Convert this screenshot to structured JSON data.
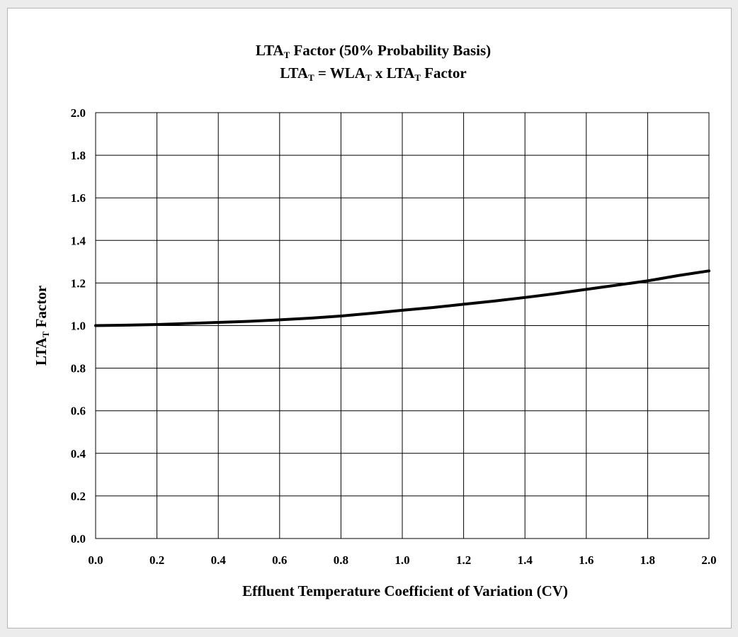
{
  "chart_data": {
    "type": "line",
    "title_line1": {
      "prefix": "LTA",
      "sub": "T",
      "suffix": " Factor (50% Probability Basis)"
    },
    "title_line2": {
      "p1": "LTA",
      "s1": "T",
      "p2": " = WLA",
      "s2": "T",
      "p3": " x LTA",
      "s3": "T",
      "p4": " Factor"
    },
    "xlabel": "Effluent Temperature Coefficient of Variation (CV)",
    "ylabel": {
      "prefix": "LTA",
      "sub": "T",
      "suffix": " Factor"
    },
    "xlim": [
      0.0,
      2.0
    ],
    "ylim": [
      0.0,
      2.0
    ],
    "x_ticks": [
      "0.0",
      "0.2",
      "0.4",
      "0.6",
      "0.8",
      "1.0",
      "1.2",
      "1.4",
      "1.6",
      "1.8",
      "2.0"
    ],
    "y_ticks": [
      "0.0",
      "0.2",
      "0.4",
      "0.6",
      "0.8",
      "1.0",
      "1.2",
      "1.4",
      "1.6",
      "1.8",
      "2.0"
    ],
    "grid": true,
    "legend": "none",
    "series": [
      {
        "color": "#000000",
        "x": [
          0.0,
          0.1,
          0.2,
          0.3,
          0.4,
          0.5,
          0.6,
          0.7,
          0.8,
          0.9,
          1.0,
          1.1,
          1.2,
          1.3,
          1.4,
          1.5,
          1.6,
          1.7,
          1.8,
          1.9,
          2.0
        ],
        "y": [
          1.0,
          1.002,
          1.005,
          1.01,
          1.015,
          1.02,
          1.027,
          1.035,
          1.045,
          1.058,
          1.072,
          1.085,
          1.1,
          1.115,
          1.132,
          1.15,
          1.17,
          1.19,
          1.21,
          1.235,
          1.257
        ]
      }
    ]
  }
}
